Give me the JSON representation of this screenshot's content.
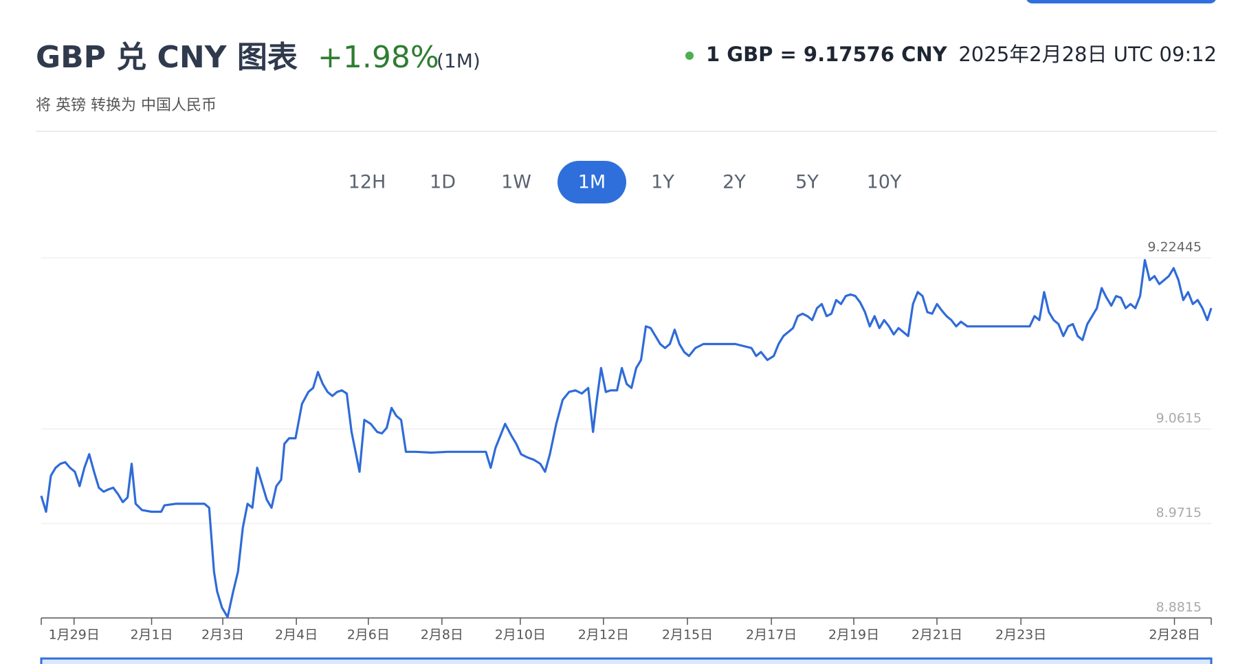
{
  "header": {
    "title": "GBP 兑 CNY 图表",
    "change": "+1.98%",
    "period": "(1M)",
    "subtitle": "将 英镑 转换为 中国人民币",
    "rate": "1 GBP = 9.17576 CNY",
    "timestamp": "2025年2月28日 UTC 09:12"
  },
  "ranges": {
    "options": [
      "12H",
      "1D",
      "1W",
      "1M",
      "1Y",
      "2Y",
      "5Y",
      "10Y"
    ],
    "active": "1M"
  },
  "chart_data": {
    "type": "line",
    "color": "#2f6bd8",
    "x": [
      0,
      6,
      12,
      18,
      24,
      30,
      36,
      42,
      48,
      54,
      60,
      66,
      72,
      78,
      84,
      90,
      96,
      102,
      108,
      113,
      118,
      126,
      138,
      150,
      154,
      168,
      188,
      204,
      210,
      216,
      220,
      226,
      233,
      240,
      246,
      252,
      258,
      264,
      270,
      276,
      282,
      288,
      294,
      300,
      304,
      310,
      318,
      326,
      334,
      340,
      346,
      352,
      358,
      364,
      370,
      376,
      382,
      388,
      394,
      398,
      404,
      412,
      420,
      426,
      432,
      438,
      444,
      450,
      456,
      468,
      488,
      508,
      528,
      548,
      556,
      562,
      568,
      574,
      580,
      588,
      594,
      600,
      608,
      616,
      624,
      630,
      636,
      644,
      652,
      660,
      668,
      676,
      684,
      690,
      694,
      700,
      706,
      712,
      720,
      726,
      732,
      738,
      744,
      750,
      756,
      762,
      768,
      774,
      780,
      786,
      792,
      798,
      804,
      810,
      818,
      828,
      848,
      868,
      888,
      894,
      900,
      908,
      916,
      922,
      928,
      934,
      940,
      946,
      952,
      958,
      964,
      970,
      976,
      982,
      988,
      994,
      1000,
      1006,
      1012,
      1018,
      1024,
      1030,
      1036,
      1042,
      1048,
      1054,
      1060,
      1066,
      1072,
      1078,
      1084,
      1090,
      1096,
      1102,
      1108,
      1114,
      1120,
      1126,
      1132,
      1138,
      1144,
      1150,
      1158,
      1178,
      1208,
      1236,
      1242,
      1248,
      1254,
      1260,
      1266,
      1272,
      1278,
      1284,
      1290,
      1296,
      1302,
      1308,
      1314,
      1320,
      1326,
      1332,
      1338,
      1344,
      1350,
      1356,
      1362,
      1368,
      1374,
      1380,
      1386,
      1392,
      1398,
      1404,
      1410,
      1416,
      1422,
      1428,
      1434,
      1440,
      1446,
      1452,
      1458,
      1463
    ],
    "values": [
      8.9978,
      8.9826,
      9.0169,
      9.0245,
      9.0283,
      9.0298,
      9.0245,
      9.0207,
      9.007,
      9.0245,
      9.0374,
      9.0207,
      9.0055,
      9.0017,
      9.0039,
      9.0055,
      8.9994,
      8.9918,
      8.9963,
      9.0283,
      8.9902,
      8.9842,
      8.9826,
      8.9826,
      8.9887,
      8.9902,
      8.9902,
      8.9902,
      8.9864,
      8.9256,
      8.9066,
      8.8914,
      8.8823,
      8.9066,
      8.9256,
      8.9674,
      8.9902,
      8.9864,
      9.0245,
      9.0093,
      8.994,
      8.9864,
      9.007,
      9.0131,
      9.0473,
      9.0526,
      9.0526,
      9.0853,
      9.0967,
      9.1005,
      9.1157,
      9.1043,
      9.0967,
      9.0929,
      9.0967,
      9.0982,
      9.0952,
      9.0587,
      9.0359,
      9.0207,
      9.0701,
      9.0663,
      9.0587,
      9.0572,
      9.0625,
      9.0815,
      9.0739,
      9.0701,
      9.0397,
      9.0397,
      9.0389,
      9.0397,
      9.0397,
      9.0397,
      9.0397,
      9.0245,
      9.0435,
      9.0549,
      9.0663,
      9.0549,
      9.0473,
      9.0374,
      9.0343,
      9.0321,
      9.0283,
      9.0207,
      9.0374,
      9.0663,
      9.0891,
      9.0967,
      9.0982,
      9.0952,
      9.1005,
      9.0587,
      9.0853,
      9.1195,
      9.0967,
      9.0982,
      9.0982,
      9.1195,
      9.1043,
      9.1005,
      9.1195,
      9.1271,
      9.1591,
      9.1575,
      9.1499,
      9.1423,
      9.1385,
      9.1423,
      9.156,
      9.1423,
      9.1347,
      9.1309,
      9.1385,
      9.1423,
      9.1423,
      9.1423,
      9.1385,
      9.1309,
      9.1347,
      9.1271,
      9.1309,
      9.1423,
      9.1499,
      9.1537,
      9.1575,
      9.1689,
      9.1712,
      9.1689,
      9.1651,
      9.1765,
      9.1804,
      9.1689,
      9.1712,
      9.1842,
      9.1804,
      9.188,
      9.1895,
      9.188,
      9.1819,
      9.1727,
      9.1591,
      9.1689,
      9.1575,
      9.1651,
      9.1591,
      9.1515,
      9.1575,
      9.1537,
      9.1499,
      9.1804,
      9.1918,
      9.188,
      9.1727,
      9.1712,
      9.1804,
      9.1743,
      9.1689,
      9.1651,
      9.1591,
      9.1636,
      9.1591,
      9.1591,
      9.1591,
      9.1591,
      9.1689,
      9.1651,
      9.1918,
      9.1727,
      9.1651,
      9.1613,
      9.1499,
      9.1591,
      9.1613,
      9.1499,
      9.1461,
      9.1613,
      9.1689,
      9.1765,
      9.1956,
      9.1864,
      9.1788,
      9.188,
      9.1864,
      9.1765,
      9.1804,
      9.1765,
      9.188,
      9.2222,
      9.2032,
      9.207,
      9.1994,
      9.2032,
      9.207,
      9.2146,
      9.2032,
      9.1842,
      9.1918,
      9.1804,
      9.1842,
      9.1765,
      9.1651,
      9.1765
    ],
    "xlim": [
      0,
      1463
    ],
    "xticks": [
      {
        "value": 41,
        "label": "1月29日"
      },
      {
        "value": 138,
        "label": "2月1日"
      },
      {
        "value": 227,
        "label": "2月3日"
      },
      {
        "value": 319,
        "label": "2月4日"
      },
      {
        "value": 409,
        "label": "2月6日"
      },
      {
        "value": 501,
        "label": "2月8日"
      },
      {
        "value": 599,
        "label": "2月10日"
      },
      {
        "value": 703,
        "label": "2月12日"
      },
      {
        "value": 808,
        "label": "2月15日"
      },
      {
        "value": 913,
        "label": "2月17日"
      },
      {
        "value": 1016,
        "label": "2月19日"
      },
      {
        "value": 1120,
        "label": "2月21日"
      },
      {
        "value": 1225,
        "label": "2月23日"
      },
      {
        "value": 1417,
        "label": "2月28日"
      }
    ],
    "ylim": [
      8.8815,
      9.22445
    ],
    "yticks": [
      8.8815,
      8.9715,
      9.0615,
      9.22445
    ],
    "grid": true
  }
}
